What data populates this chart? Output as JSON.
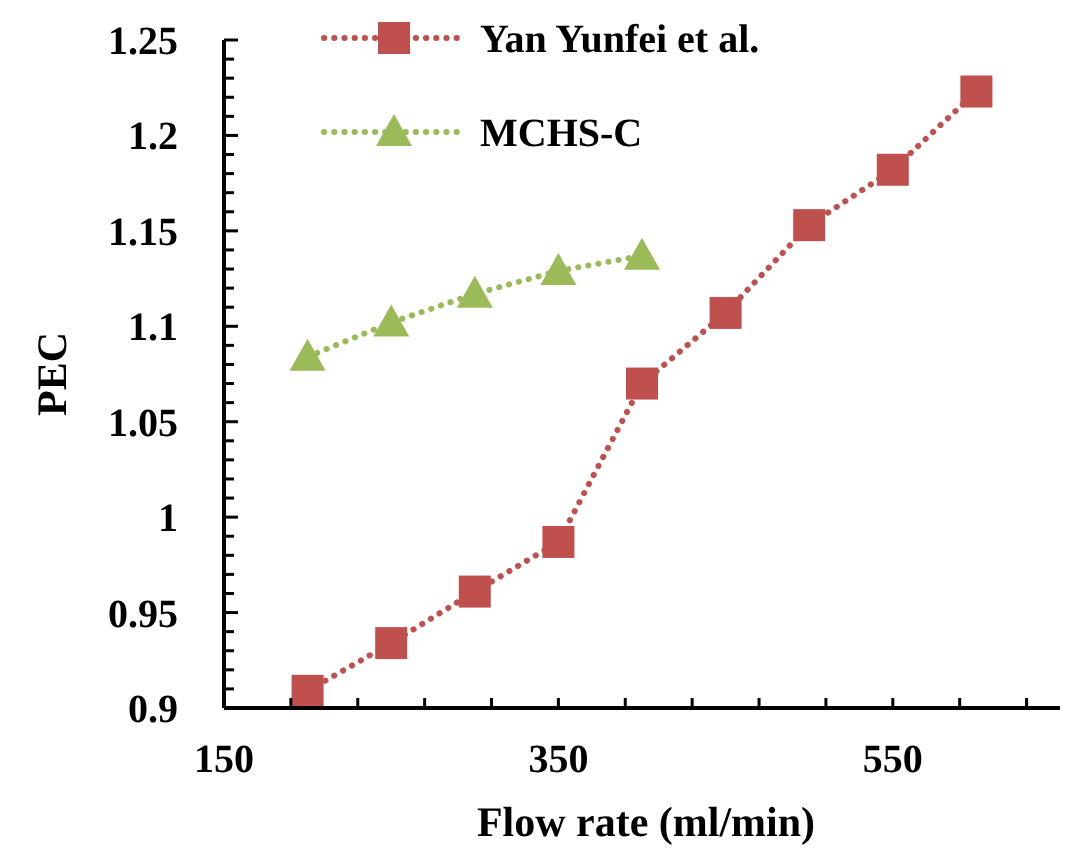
{
  "chart_data": {
    "type": "line",
    "xlabel": "Flow rate (ml/min)",
    "ylabel": "PEC",
    "xlim": [
      150,
      650
    ],
    "ylim": [
      0.9,
      1.25
    ],
    "xticks": [
      150,
      {
        "value": 190,
        "label": null
      },
      {
        "value": 230,
        "label": null
      },
      {
        "value": 270,
        "label": null
      },
      {
        "value": 310,
        "label": null
      },
      350,
      {
        "value": 390,
        "label": null
      },
      {
        "value": 430,
        "label": null
      },
      {
        "value": 470,
        "label": null
      },
      {
        "value": 510,
        "label": null
      },
      550,
      {
        "value": 590,
        "label": null
      },
      {
        "value": 630,
        "label": null
      }
    ],
    "yticks": [
      0.9,
      {
        "value": 0.91,
        "label": null
      },
      {
        "value": 0.92,
        "label": null
      },
      {
        "value": 0.93,
        "label": null
      },
      {
        "value": 0.94,
        "label": null
      },
      0.95,
      {
        "value": 0.96,
        "label": null
      },
      {
        "value": 0.97,
        "label": null
      },
      {
        "value": 0.98,
        "label": null
      },
      {
        "value": 0.99,
        "label": null
      },
      1,
      {
        "value": 1.01,
        "label": null
      },
      {
        "value": 1.02,
        "label": null
      },
      {
        "value": 1.03,
        "label": null
      },
      {
        "value": 1.04,
        "label": null
      },
      1.05,
      {
        "value": 1.06,
        "label": null
      },
      {
        "value": 1.07,
        "label": null
      },
      {
        "value": 1.08,
        "label": null
      },
      {
        "value": 1.09,
        "label": null
      },
      1.1,
      {
        "value": 1.11,
        "label": null
      },
      {
        "value": 1.12,
        "label": null
      },
      {
        "value": 1.13,
        "label": null
      },
      {
        "value": 1.14,
        "label": null
      },
      1.15,
      {
        "value": 1.16,
        "label": null
      },
      {
        "value": 1.17,
        "label": null
      },
      {
        "value": 1.18,
        "label": null
      },
      {
        "value": 1.19,
        "label": null
      },
      1.2,
      {
        "value": 1.21,
        "label": null
      },
      {
        "value": 1.22,
        "label": null
      },
      {
        "value": 1.23,
        "label": null
      },
      {
        "value": 1.24,
        "label": null
      },
      1.25
    ],
    "legend": "top left",
    "line_style": "dotted",
    "grid": false,
    "series": [
      {
        "name": "Yan Yunfei et al.",
        "color": "#c0504d",
        "marker": "square",
        "x": [
          200,
          250,
          300,
          350,
          400,
          450,
          500,
          550,
          600
        ],
        "values": [
          0.909,
          0.934,
          0.961,
          0.987,
          1.07,
          1.107,
          1.153,
          1.182,
          1.223
        ]
      },
      {
        "name": "MCHS-C",
        "color": "#9bbb59",
        "marker": "triangle",
        "x": [
          200,
          250,
          300,
          350,
          400
        ],
        "values": [
          1.084,
          1.102,
          1.117,
          1.129,
          1.137
        ]
      }
    ]
  }
}
